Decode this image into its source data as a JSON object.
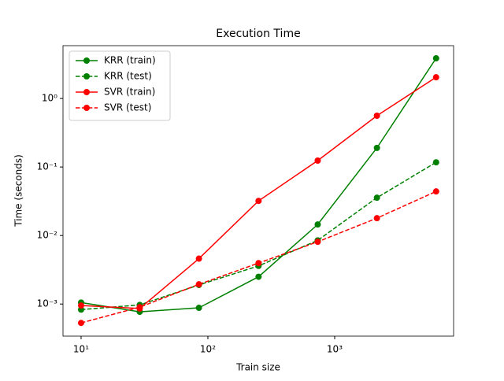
{
  "chart_data": {
    "type": "line",
    "title": "Execution Time",
    "xlabel": "Train size",
    "ylabel": "Time (seconds)",
    "x": [
      10,
      29,
      85,
      251,
      735,
      2154,
      6309
    ],
    "series": [
      {
        "name": "KRR (train)",
        "color": "#008000",
        "linestyle": "solid",
        "values": [
          0.00105,
          0.00077,
          0.00088,
          0.0025,
          0.0145,
          0.19,
          3.86
        ]
      },
      {
        "name": "KRR (test)",
        "color": "#008000",
        "linestyle": "dashed",
        "values": [
          0.00083,
          0.00097,
          0.0019,
          0.0036,
          0.0085,
          0.0356,
          0.117
        ]
      },
      {
        "name": "SVR (train)",
        "color": "#ff0000",
        "linestyle": "solid",
        "values": [
          0.00095,
          0.00086,
          0.0046,
          0.032,
          0.124,
          0.56,
          2.04
        ]
      },
      {
        "name": "SVR (test)",
        "color": "#ff0000",
        "linestyle": "dashed",
        "values": [
          0.00053,
          0.0009,
          0.00194,
          0.00396,
          0.0081,
          0.0179,
          0.044
        ]
      }
    ],
    "xscale": "log",
    "yscale": "log",
    "xlim": [
      7.2,
      8670
    ],
    "ylim": [
      0.00034,
      5.9
    ],
    "xticks": [
      {
        "value": 10,
        "label": "10¹"
      },
      {
        "value": 100,
        "label": "10²"
      },
      {
        "value": 1000,
        "label": "10³"
      }
    ],
    "yticks": [
      {
        "value": 0.001,
        "label": "10⁻³"
      },
      {
        "value": 0.01,
        "label": "10⁻²"
      },
      {
        "value": 0.1,
        "label": "10⁻¹"
      },
      {
        "value": 1,
        "label": "10⁰"
      }
    ],
    "legend": "upper left",
    "grid": false
  }
}
